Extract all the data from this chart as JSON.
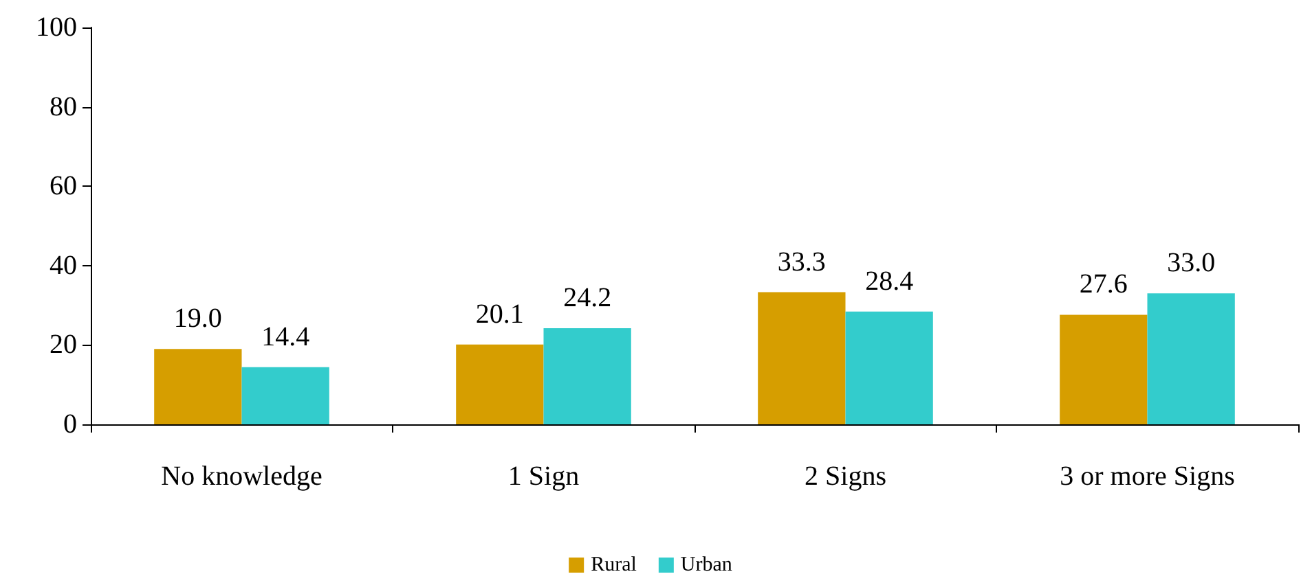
{
  "chart_data": {
    "type": "bar",
    "categories": [
      "No knowledge",
      "1 Sign",
      "2 Signs",
      "3 or more Signs"
    ],
    "series": [
      {
        "name": "Rural",
        "color": "#d69e00",
        "values": [
          19.0,
          20.1,
          33.3,
          27.6
        ],
        "value_labels": [
          "19.0",
          "20.1",
          "33.3",
          "27.6"
        ]
      },
      {
        "name": "Urban",
        "color": "#33cccc",
        "values": [
          14.4,
          24.2,
          28.4,
          33.0
        ],
        "value_labels": [
          "14.4",
          "24.2",
          "28.4",
          "33.0"
        ]
      }
    ],
    "ylim": [
      0,
      100
    ],
    "yticks": [
      0,
      20,
      40,
      60,
      80,
      100
    ],
    "grid": false,
    "legend": "bottom"
  }
}
